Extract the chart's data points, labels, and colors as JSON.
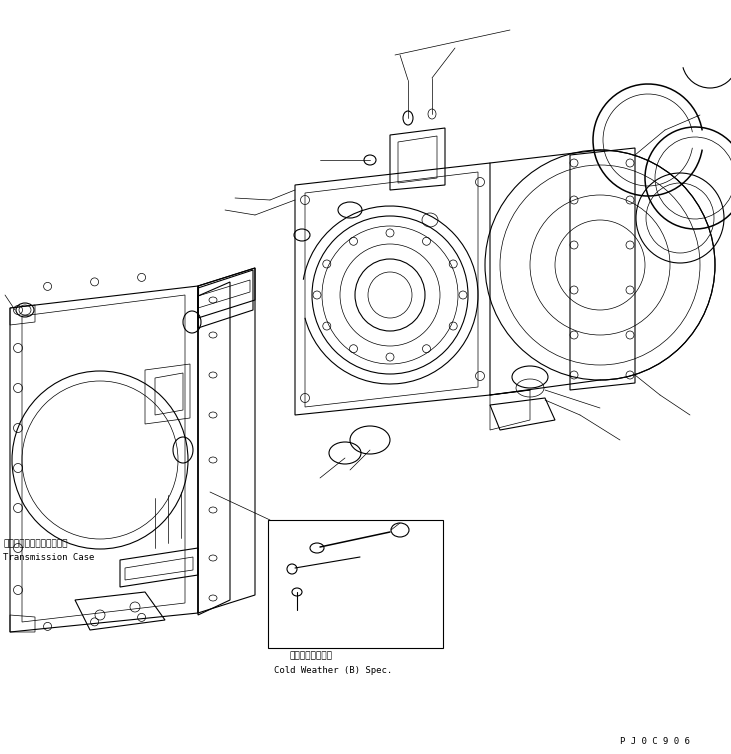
{
  "bg": "#ffffff",
  "lc": "#000000",
  "lw": 0.8,
  "tlw": 0.5,
  "fig_w": 7.31,
  "fig_h": 7.54,
  "dpi": 100,
  "label_jp": "トランスミッションケース",
  "label_en": "Transmission Case",
  "cold_jp": "寒冷地（Ｂ）仕様",
  "cold_en": "Cold Weather (B) Spec.",
  "pjoc": "P J 0 C 9 0 6",
  "fs": 6.5,
  "fs_pjoc": 6.5
}
